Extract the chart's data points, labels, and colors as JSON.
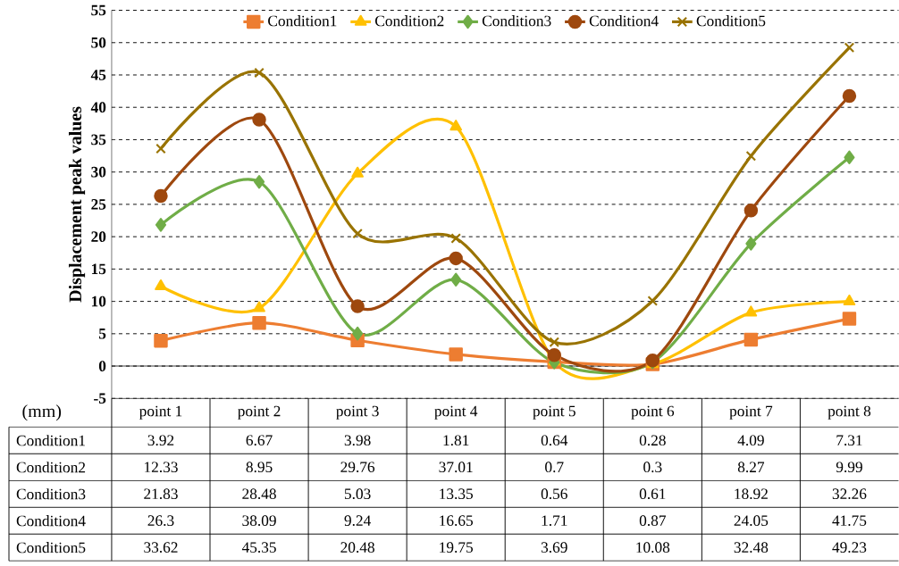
{
  "chart_data": {
    "type": "line",
    "ylabel": "Displacement peak values",
    "categories": [
      "point 1",
      "point 2",
      "point 3",
      "point 4",
      "point 5",
      "point 6",
      "point 7",
      "point 8"
    ],
    "series": [
      {
        "name": "Condition1",
        "color": "#ed7d31",
        "marker": "square",
        "values": [
          3.92,
          6.67,
          3.98,
          1.81,
          0.64,
          0.28,
          4.09,
          7.31
        ]
      },
      {
        "name": "Condition2",
        "color": "#ffc000",
        "marker": "triangle",
        "values": [
          12.33,
          8.95,
          29.76,
          37.01,
          0.7,
          0.3,
          8.27,
          9.99
        ]
      },
      {
        "name": "Condition3",
        "color": "#70ad47",
        "marker": "diamond",
        "values": [
          21.83,
          28.48,
          5.03,
          13.35,
          0.56,
          0.61,
          18.92,
          32.26
        ]
      },
      {
        "name": "Condition4",
        "color": "#9e480e",
        "marker": "circle",
        "values": [
          26.3,
          38.09,
          9.24,
          16.65,
          1.71,
          0.87,
          24.05,
          41.75
        ]
      },
      {
        "name": "Condition5",
        "color": "#997300",
        "marker": "cross",
        "values": [
          33.62,
          45.35,
          20.48,
          19.75,
          3.69,
          10.08,
          32.48,
          49.23
        ]
      }
    ],
    "ylim": [
      -5,
      55
    ],
    "yticks": [
      -5,
      0,
      5,
      10,
      15,
      20,
      25,
      30,
      35,
      40,
      45,
      50,
      55
    ],
    "grid": "y",
    "line_style": "solid",
    "legend": "top",
    "data_labels": true,
    "annotations": [
      "(mm)"
    ]
  }
}
